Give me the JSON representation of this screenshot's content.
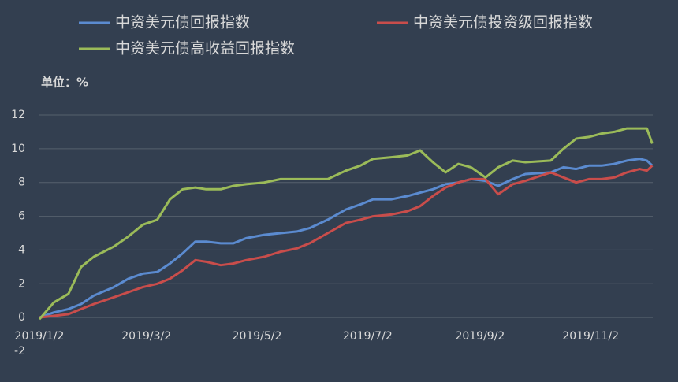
{
  "chart_data": {
    "type": "line",
    "unit_label": "单位：%",
    "x": [
      "2019/1/2",
      "2019/1/10",
      "2019/1/18",
      "2019/1/25",
      "2019/2/1",
      "2019/2/12",
      "2019/2/20",
      "2019/2/28",
      "2019/3/8",
      "2019/3/15",
      "2019/3/22",
      "2019/3/29",
      "2019/4/4",
      "2019/4/12",
      "2019/4/19",
      "2019/4/26",
      "2019/5/6",
      "2019/5/15",
      "2019/5/24",
      "2019/5/31",
      "2019/6/10",
      "2019/6/20",
      "2019/6/28",
      "2019/7/5",
      "2019/7/15",
      "2019/7/24",
      "2019/7/31",
      "2019/8/7",
      "2019/8/14",
      "2019/8/21",
      "2019/8/28",
      "2019/9/5",
      "2019/9/12",
      "2019/9/20",
      "2019/9/27",
      "2019/10/11",
      "2019/10/18",
      "2019/10/25",
      "2019/11/1",
      "2019/11/8",
      "2019/11/15",
      "2019/11/22",
      "2019/11/29",
      "2019/12/3",
      "2019/12/6"
    ],
    "series": [
      {
        "name": "中资美元债回报指数",
        "color": "#5b8bd0",
        "values": [
          0,
          0.3,
          0.5,
          0.8,
          1.3,
          1.8,
          2.3,
          2.6,
          2.7,
          3.2,
          3.8,
          4.5,
          4.5,
          4.4,
          4.4,
          4.7,
          4.9,
          5.0,
          5.1,
          5.3,
          5.8,
          6.4,
          6.7,
          7.0,
          7.0,
          7.2,
          7.4,
          7.6,
          7.9,
          8.0,
          8.2,
          8.1,
          7.8,
          8.2,
          8.5,
          8.6,
          8.9,
          8.8,
          9.0,
          9.0,
          9.1,
          9.3,
          9.4,
          9.3,
          9.0
        ]
      },
      {
        "name": "中资美元债投资级回报指数",
        "color": "#c94d4b",
        "values": [
          0,
          0.1,
          0.2,
          0.5,
          0.8,
          1.2,
          1.5,
          1.8,
          2.0,
          2.3,
          2.8,
          3.4,
          3.3,
          3.1,
          3.2,
          3.4,
          3.6,
          3.9,
          4.1,
          4.4,
          5.0,
          5.6,
          5.8,
          6.0,
          6.1,
          6.3,
          6.6,
          7.2,
          7.7,
          8.0,
          8.2,
          8.2,
          7.3,
          7.9,
          8.1,
          8.6,
          8.3,
          8.0,
          8.2,
          8.2,
          8.3,
          8.6,
          8.8,
          8.7,
          9.0
        ]
      },
      {
        "name": "中资美元债高收益回报指数",
        "color": "#9bbb59",
        "values": [
          -0.1,
          0.9,
          1.4,
          3.0,
          3.6,
          4.2,
          4.8,
          5.5,
          5.8,
          7.0,
          7.6,
          7.7,
          7.6,
          7.6,
          7.8,
          7.9,
          8.0,
          8.2,
          8.2,
          8.2,
          8.2,
          8.7,
          9.0,
          9.4,
          9.5,
          9.6,
          9.9,
          9.2,
          8.6,
          9.1,
          8.9,
          8.3,
          8.9,
          9.3,
          9.2,
          9.3,
          10.0,
          10.6,
          10.7,
          10.9,
          11.0,
          11.2,
          11.2,
          11.2,
          10.3
        ]
      }
    ],
    "xticks": [
      "2019/1/2",
      "2019/3/2",
      "2019/5/2",
      "2019/7/2",
      "2019/9/2",
      "2019/11/2"
    ],
    "ylim": [
      -2,
      12
    ],
    "yticks": [
      -2,
      0,
      2,
      4,
      6,
      8,
      10,
      12
    ],
    "grid": true,
    "legend": "top"
  }
}
